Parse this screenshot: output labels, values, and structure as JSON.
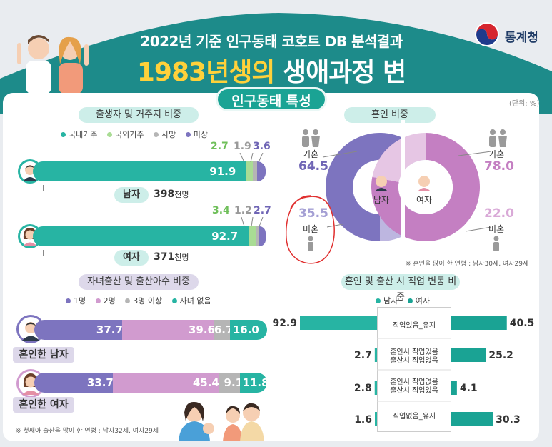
{
  "header": {
    "title_line1": "2022년 기준 인구동태 코호트 DB 분석결과",
    "title_line2_year": "1983년생의",
    "title_line2_rest": " 생애과정 변화",
    "agency": "통계청"
  },
  "section_title": "인구동태 특성",
  "unit_note": "(단위: %)",
  "colors": {
    "teal": "#27b4a3",
    "teal_dark": "#1aa394",
    "light_green": "#a9dc94",
    "gray": "#b5b5b5",
    "purple": "#7d74bf",
    "pink": "#d19bcf",
    "light_purple": "#bdb6e0",
    "light_pink": "#e6c6e4",
    "header_teal": "#1d8b8a",
    "red_circle": "#e03030"
  },
  "chart_data": [
    {
      "type": "bar",
      "title": "출생자 및 거주지 비중",
      "legend": [
        "국내거주",
        "국외거주",
        "사망",
        "미상"
      ],
      "series_colors": [
        "#27b4a3",
        "#a9dc94",
        "#b5b5b5",
        "#7d74bf"
      ],
      "rows": [
        {
          "label": "남자",
          "count": "398",
          "count_unit": "천명",
          "values": [
            91.9,
            2.7,
            1.9,
            3.6
          ],
          "value_texts": [
            "91.9",
            "2.7",
            "1.9",
            "3.6"
          ]
        },
        {
          "label": "여자",
          "count": "371",
          "count_unit": "천명",
          "values": [
            92.7,
            3.4,
            1.2,
            2.7
          ],
          "value_texts": [
            "92.7",
            "3.4",
            "1.2",
            "2.7"
          ]
        }
      ]
    },
    {
      "type": "pie",
      "title": "혼인 비중",
      "donuts": [
        {
          "center": "남자",
          "slices": [
            {
              "label": "기혼",
              "value": 64.5,
              "text": "64.5"
            },
            {
              "label": "미혼",
              "value": 35.5,
              "text": "35.5"
            }
          ]
        },
        {
          "center": "여자",
          "slices": [
            {
              "label": "기혼",
              "value": 78.0,
              "text": "78.0"
            },
            {
              "label": "미혼",
              "value": 22.0,
              "text": "22.0"
            }
          ]
        }
      ],
      "note": "※ 혼인을 많이 한 연령 : 남자30세, 여자29세"
    },
    {
      "type": "bar",
      "title": "자녀출산 및 출산아수 비중",
      "legend": [
        "1명",
        "2명",
        "3명 이상",
        "자녀 없음"
      ],
      "series_colors": [
        "#7d74bf",
        "#d19bcf",
        "#b5b5b5",
        "#27b4a3"
      ],
      "rows": [
        {
          "label": "혼인한 남자",
          "values": [
            37.7,
            39.6,
            6.7,
            16.0
          ],
          "value_texts": [
            "37.7",
            "39.6",
            "6.7",
            "16.0"
          ]
        },
        {
          "label": "혼인한 여자",
          "values": [
            33.7,
            45.4,
            9.1,
            11.8
          ],
          "value_texts": [
            "33.7",
            "45.4",
            "9.1",
            "11.8"
          ]
        }
      ],
      "note": "※ 첫째아 출산을 많이 한 연령 : 남자32세, 여자29세"
    },
    {
      "type": "bar",
      "title": "혼인 및 출산 시 직업 변동 비중",
      "legend": [
        "남자",
        "여자"
      ],
      "series_colors": [
        "#27b4a3",
        "#1aa394"
      ],
      "categories": [
        "직업있음_유지",
        "혼인시 직업있음\n출산시 직업없음",
        "혼인시 직업없음\n출산시 직업있음",
        "직업없음_유지"
      ],
      "series": [
        {
          "name": "남자",
          "values": [
            92.9,
            2.7,
            2.8,
            1.6
          ]
        },
        {
          "name": "여자",
          "values": [
            40.5,
            25.2,
            4.1,
            30.3
          ]
        }
      ]
    }
  ],
  "texts": {
    "job_cat1": "직업있음_유지",
    "job_cat2a": "혼인시 직업있음",
    "job_cat2b": "출산시 직업없음",
    "job_cat3a": "혼인시 직업없음",
    "job_cat3b": "출산시 직업있음",
    "job_cat4": "직업없음_유지"
  }
}
